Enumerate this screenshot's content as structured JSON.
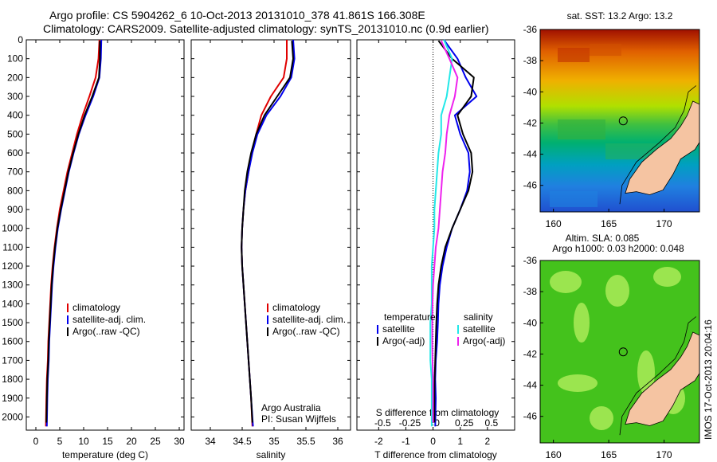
{
  "titles": {
    "line1": "Argo profile: CS 5904262_6 10-Oct-2013 20131010_378 41.861S 166.308E",
    "line2": "Climatology: CARS2009. Satellite-adjusted climatology: synTS_20131010.nc (0.9d earlier)",
    "map1": "sat. SST: 13.2 Argo: 13.2",
    "map2_line1": "Altim. SLA: 0.085",
    "map2_line2": "Argo h1000: 0.03 h2000: 0.048",
    "credit": "IMOS 17-Oct-2013 20:04:16"
  },
  "colors": {
    "climatology": "#e00000",
    "satellite": "#0000ee",
    "argo": "#000000",
    "sal_satellite": "#22e8e8",
    "sal_argo": "#ee22ee",
    "land": "#f5c4a2"
  },
  "chart_data": [
    {
      "type": "line",
      "xlabel": "temperature (deg C)",
      "ylabel": "",
      "xlim": [
        -2,
        31
      ],
      "ylim": [
        2070,
        0
      ],
      "xticks": [
        0,
        5,
        10,
        15,
        20,
        25,
        30
      ],
      "yticks": [
        0,
        100,
        200,
        300,
        400,
        500,
        600,
        700,
        800,
        900,
        1000,
        1100,
        1200,
        1300,
        1400,
        1500,
        1600,
        1700,
        1800,
        1900,
        2000
      ],
      "legend": [
        "climatology",
        "satellite-adj. clim.",
        "Argo(..raw -QC)"
      ],
      "legend_position": "lower-center",
      "series": [
        {
          "name": "climatology",
          "color_key": "climatology",
          "x": [
            13.3,
            13.1,
            12.5,
            11.2,
            9.8,
            8.6,
            7.6,
            6.6,
            5.8,
            5.0,
            4.4,
            3.9,
            3.5,
            3.2,
            3.0,
            2.8,
            2.6,
            2.5,
            2.3,
            2.2,
            2.1
          ],
          "y": [
            0,
            100,
            200,
            300,
            400,
            500,
            600,
            700,
            800,
            900,
            1000,
            1100,
            1200,
            1300,
            1400,
            1500,
            1600,
            1700,
            1800,
            1900,
            2050
          ]
        },
        {
          "name": "satellite-adj. clim.",
          "color_key": "satellite",
          "x": [
            13.7,
            13.6,
            13.3,
            12.0,
            10.4,
            9.0,
            7.9,
            6.9,
            6.1,
            5.3,
            4.6,
            4.1,
            3.7,
            3.4,
            3.2,
            3.0,
            2.8,
            2.7,
            2.5,
            2.4,
            2.3
          ],
          "y": [
            0,
            100,
            200,
            300,
            400,
            500,
            600,
            700,
            800,
            900,
            1000,
            1100,
            1200,
            1300,
            1400,
            1500,
            1600,
            1700,
            1800,
            1900,
            2050
          ]
        },
        {
          "name": "Argo(..raw -QC)",
          "color_key": "argo",
          "x": [
            13.4,
            13.4,
            13.2,
            11.8,
            10.2,
            8.9,
            7.8,
            6.8,
            6.0,
            5.2,
            4.5,
            4.0,
            3.6,
            3.3,
            3.1,
            2.9,
            2.7,
            2.6,
            2.4,
            2.3,
            2.2
          ],
          "y": [
            5,
            100,
            200,
            300,
            400,
            500,
            600,
            700,
            800,
            900,
            1000,
            1100,
            1200,
            1300,
            1400,
            1500,
            1600,
            1700,
            1800,
            1900,
            2030
          ]
        }
      ]
    },
    {
      "type": "line",
      "xlabel": "salinity",
      "xlim": [
        33.7,
        36.2
      ],
      "ylim": [
        2070,
        0
      ],
      "xticks": [
        34,
        34.5,
        35,
        35.5,
        36
      ],
      "legend": [
        "climatology",
        "satellite-adj. clim.",
        "Argo(..raw -QC)"
      ],
      "legend_position": "lower-center",
      "annotation": [
        "Argo Australia",
        "PI: Susan Wijffels"
      ],
      "series": [
        {
          "name": "climatology",
          "color_key": "climatology",
          "x": [
            35.2,
            35.2,
            35.15,
            34.95,
            34.8,
            34.72,
            34.65,
            34.6,
            34.55,
            34.52,
            34.5,
            34.49,
            34.5,
            34.52,
            34.54,
            34.56,
            34.58,
            34.6,
            34.62,
            34.64,
            34.66
          ],
          "y": [
            0,
            100,
            200,
            300,
            400,
            500,
            600,
            700,
            800,
            900,
            1000,
            1100,
            1200,
            1300,
            1400,
            1500,
            1600,
            1700,
            1800,
            1900,
            2050
          ]
        },
        {
          "name": "satellite-adj. clim.",
          "color_key": "satellite",
          "x": [
            35.3,
            35.32,
            35.27,
            35.1,
            34.88,
            34.74,
            34.66,
            34.6,
            34.55,
            34.52,
            34.5,
            34.49,
            34.5,
            34.52,
            34.54,
            34.56,
            34.58,
            34.6,
            34.62,
            34.64,
            34.67
          ],
          "y": [
            0,
            100,
            200,
            300,
            400,
            500,
            600,
            700,
            800,
            900,
            1000,
            1100,
            1200,
            1300,
            1400,
            1500,
            1600,
            1700,
            1800,
            1900,
            2050
          ]
        },
        {
          "name": "Argo(..raw -QC)",
          "color_key": "argo",
          "x": [
            35.28,
            35.3,
            35.25,
            35.05,
            34.85,
            34.72,
            34.64,
            34.58,
            34.54,
            34.52,
            34.5,
            34.49,
            34.5,
            34.52,
            34.54,
            34.56,
            34.58,
            34.6,
            34.62,
            34.64,
            34.66
          ],
          "y": [
            5,
            100,
            200,
            300,
            400,
            500,
            600,
            700,
            800,
            900,
            1000,
            1100,
            1200,
            1300,
            1400,
            1500,
            1600,
            1700,
            1800,
            1900,
            2030
          ]
        }
      ]
    },
    {
      "type": "line",
      "xlabel": "T difference from climatology",
      "xlabel_top": "S difference from climatology",
      "xlim": [
        -2.8,
        3.0
      ],
      "ylim": [
        2070,
        0
      ],
      "xticks": [
        -2,
        -1,
        0,
        1,
        2
      ],
      "xtick_labels_s": [
        "-0.5",
        "-0.25",
        "0",
        "0.25",
        "0.5"
      ],
      "legend_temperature": {
        "title": "temperature",
        "items": [
          "satellite",
          "Argo(-adj)"
        ]
      },
      "legend_salinity": {
        "title": "salinity",
        "items": [
          "satellite",
          "Argo(-adj)"
        ]
      },
      "series": [
        {
          "name": "temperature satellite",
          "color_key": "satellite",
          "x": [
            0.4,
            0.9,
            1.2,
            1.6,
            0.8,
            1.0,
            1.3,
            1.35,
            1.25,
            1.0,
            0.7,
            0.5,
            0.35,
            0.25,
            0.2,
            0.18,
            0.15,
            0.1,
            0.08,
            0.1,
            0.08
          ],
          "y": [
            0,
            100,
            200,
            300,
            400,
            500,
            600,
            700,
            800,
            900,
            1000,
            1100,
            1200,
            1300,
            1400,
            1500,
            1600,
            1700,
            1800,
            1900,
            2050
          ]
        },
        {
          "name": "temperature Argo(-adj)",
          "color_key": "argo",
          "x": [
            0.2,
            0.7,
            1.5,
            1.4,
            0.9,
            1.1,
            1.4,
            1.45,
            1.3,
            1.0,
            0.7,
            0.45,
            0.3,
            0.2,
            0.15,
            0.12,
            0.1,
            0.08,
            0.06,
            0.05,
            0.05
          ],
          "y": [
            5,
            100,
            200,
            300,
            400,
            500,
            600,
            700,
            800,
            900,
            1000,
            1100,
            1200,
            1300,
            1400,
            1500,
            1600,
            1700,
            1800,
            1900,
            2030
          ]
        },
        {
          "name": "salinity satellite",
          "color_key": "sal_satellite",
          "x": [
            0.4,
            0.7,
            0.6,
            0.5,
            0.3,
            0.3,
            0.2,
            0.15,
            0.1,
            0.05,
            0.05,
            0.0,
            -0.05,
            -0.05,
            -0.05,
            -0.1,
            -0.1,
            -0.1,
            -0.05,
            -0.05,
            -0.05
          ],
          "y": [
            0,
            100,
            200,
            300,
            400,
            500,
            600,
            700,
            800,
            900,
            1000,
            1100,
            1200,
            1300,
            1400,
            1500,
            1600,
            1700,
            1800,
            1900,
            2050
          ]
        },
        {
          "name": "salinity Argo(-adj)",
          "color_key": "sal_argo",
          "x": [
            0.3,
            0.6,
            0.9,
            0.8,
            0.6,
            0.5,
            0.45,
            0.35,
            0.3,
            0.25,
            0.2,
            0.1,
            0.05,
            0.0,
            -0.02,
            -0.03,
            -0.03,
            -0.02,
            0.0,
            0.0,
            0.0
          ],
          "y": [
            5,
            100,
            200,
            300,
            400,
            500,
            600,
            700,
            800,
            900,
            1000,
            1100,
            1200,
            1300,
            1400,
            1500,
            1600,
            1700,
            1800,
            1900,
            2030
          ]
        }
      ]
    },
    {
      "type": "heatmap",
      "title": "sat. SST: 13.2 Argo: 13.2",
      "xlim": [
        158.8,
        173.2
      ],
      "ylim": [
        -47.7,
        -36
      ],
      "xticks": [
        160,
        165,
        170
      ],
      "yticks": [
        -36,
        -38,
        -40,
        -42,
        -44,
        -46
      ],
      "argo_position": {
        "lon": 166.308,
        "lat": -41.861
      }
    },
    {
      "type": "heatmap",
      "title": "Altim. SLA: 0.085 / Argo h1000: 0.03 h2000: 0.048",
      "xlim": [
        158.8,
        173.2
      ],
      "ylim": [
        -47.7,
        -36
      ],
      "xticks": [
        160,
        165,
        170
      ],
      "yticks": [
        -36,
        -38,
        -40,
        -42,
        -44,
        -46
      ],
      "argo_position": {
        "lon": 166.308,
        "lat": -41.861
      }
    }
  ]
}
